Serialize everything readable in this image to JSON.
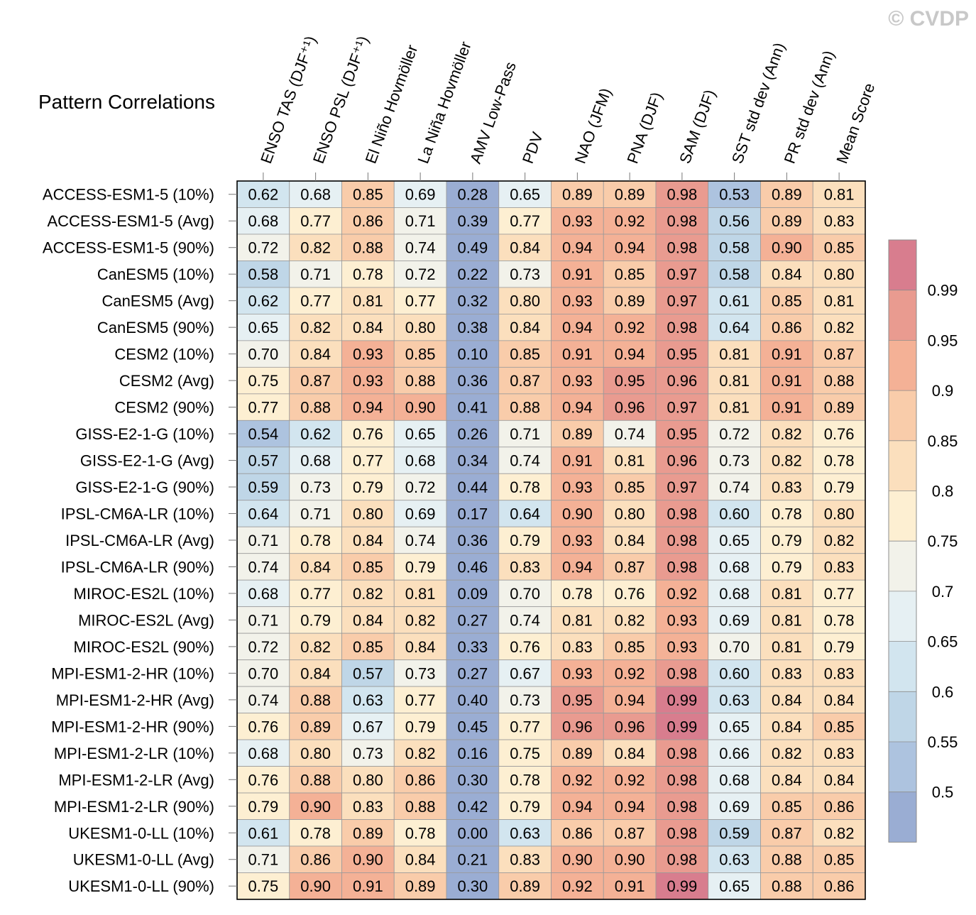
{
  "watermark": "© CVDP",
  "chart_data": {
    "type": "heatmap",
    "title": "Pattern Correlations",
    "columns": [
      "ENSO TAS (DJF⁺¹)",
      "ENSO PSL (DJF⁺¹)",
      "El Niño Hovmöller",
      "La Niña Hovmöller",
      "AMV Low-Pass",
      "PDV",
      "NAO (JFM)",
      "PNA (DJF)",
      "SAM (DJF)",
      "SST std dev (Ann)",
      "PR std dev (Ann)",
      "Mean Score"
    ],
    "rows": [
      "ACCESS-ESM1-5 (10%)",
      "ACCESS-ESM1-5 (Avg)",
      "ACCESS-ESM1-5 (90%)",
      "CanESM5 (10%)",
      "CanESM5 (Avg)",
      "CanESM5 (90%)",
      "CESM2 (10%)",
      "CESM2 (Avg)",
      "CESM2 (90%)",
      "GISS-E2-1-G (10%)",
      "GISS-E2-1-G (Avg)",
      "GISS-E2-1-G (90%)",
      "IPSL-CM6A-LR (10%)",
      "IPSL-CM6A-LR (Avg)",
      "IPSL-CM6A-LR (90%)",
      "MIROC-ES2L (10%)",
      "MIROC-ES2L (Avg)",
      "MIROC-ES2L (90%)",
      "MPI-ESM1-2-HR (10%)",
      "MPI-ESM1-2-HR (Avg)",
      "MPI-ESM1-2-HR (90%)",
      "MPI-ESM1-2-LR (10%)",
      "MPI-ESM1-2-LR (Avg)",
      "MPI-ESM1-2-LR (90%)",
      "UKESM1-0-LL (10%)",
      "UKESM1-0-LL (Avg)",
      "UKESM1-0-LL (90%)"
    ],
    "values": [
      [
        "0.62",
        "0.68",
        "0.85",
        "0.69",
        "0.28",
        "0.65",
        "0.89",
        "0.89",
        "0.98",
        "0.53",
        "0.89",
        "0.81"
      ],
      [
        "0.68",
        "0.77",
        "0.86",
        "0.71",
        "0.39",
        "0.77",
        "0.93",
        "0.92",
        "0.98",
        "0.56",
        "0.89",
        "0.83"
      ],
      [
        "0.72",
        "0.82",
        "0.88",
        "0.74",
        "0.49",
        "0.84",
        "0.94",
        "0.94",
        "0.98",
        "0.58",
        "0.90",
        "0.85"
      ],
      [
        "0.58",
        "0.71",
        "0.78",
        "0.72",
        "0.22",
        "0.73",
        "0.91",
        "0.85",
        "0.97",
        "0.58",
        "0.84",
        "0.80"
      ],
      [
        "0.62",
        "0.77",
        "0.81",
        "0.77",
        "0.32",
        "0.80",
        "0.93",
        "0.89",
        "0.97",
        "0.61",
        "0.85",
        "0.81"
      ],
      [
        "0.65",
        "0.82",
        "0.84",
        "0.80",
        "0.38",
        "0.84",
        "0.94",
        "0.92",
        "0.98",
        "0.64",
        "0.86",
        "0.82"
      ],
      [
        "0.70",
        "0.84",
        "0.93",
        "0.85",
        "0.10",
        "0.85",
        "0.91",
        "0.94",
        "0.95",
        "0.81",
        "0.91",
        "0.87"
      ],
      [
        "0.75",
        "0.87",
        "0.93",
        "0.88",
        "0.36",
        "0.87",
        "0.93",
        "0.95",
        "0.96",
        "0.81",
        "0.91",
        "0.88"
      ],
      [
        "0.77",
        "0.88",
        "0.94",
        "0.90",
        "0.41",
        "0.88",
        "0.94",
        "0.96",
        "0.97",
        "0.81",
        "0.91",
        "0.89"
      ],
      [
        "0.54",
        "0.62",
        "0.76",
        "0.65",
        "0.26",
        "0.71",
        "0.89",
        "0.74",
        "0.95",
        "0.72",
        "0.82",
        "0.76"
      ],
      [
        "0.57",
        "0.68",
        "0.77",
        "0.68",
        "0.34",
        "0.74",
        "0.91",
        "0.81",
        "0.96",
        "0.73",
        "0.82",
        "0.78"
      ],
      [
        "0.59",
        "0.73",
        "0.79",
        "0.72",
        "0.44",
        "0.78",
        "0.93",
        "0.85",
        "0.97",
        "0.74",
        "0.83",
        "0.79"
      ],
      [
        "0.64",
        "0.71",
        "0.80",
        "0.69",
        "0.17",
        "0.64",
        "0.90",
        "0.80",
        "0.98",
        "0.60",
        "0.78",
        "0.80"
      ],
      [
        "0.71",
        "0.78",
        "0.84",
        "0.74",
        "0.36",
        "0.79",
        "0.93",
        "0.84",
        "0.98",
        "0.65",
        "0.79",
        "0.82"
      ],
      [
        "0.74",
        "0.84",
        "0.85",
        "0.79",
        "0.46",
        "0.83",
        "0.94",
        "0.87",
        "0.98",
        "0.68",
        "0.79",
        "0.83"
      ],
      [
        "0.68",
        "0.77",
        "0.82",
        "0.81",
        "0.09",
        "0.70",
        "0.78",
        "0.76",
        "0.92",
        "0.68",
        "0.81",
        "0.77"
      ],
      [
        "0.71",
        "0.79",
        "0.84",
        "0.82",
        "0.27",
        "0.74",
        "0.81",
        "0.82",
        "0.93",
        "0.69",
        "0.81",
        "0.78"
      ],
      [
        "0.72",
        "0.82",
        "0.85",
        "0.84",
        "0.33",
        "0.76",
        "0.83",
        "0.85",
        "0.93",
        "0.70",
        "0.81",
        "0.79"
      ],
      [
        "0.70",
        "0.84",
        "0.57",
        "0.73",
        "0.27",
        "0.67",
        "0.93",
        "0.92",
        "0.98",
        "0.60",
        "0.83",
        "0.83"
      ],
      [
        "0.74",
        "0.88",
        "0.63",
        "0.77",
        "0.40",
        "0.73",
        "0.95",
        "0.94",
        "0.99",
        "0.63",
        "0.84",
        "0.84"
      ],
      [
        "0.76",
        "0.89",
        "0.67",
        "0.79",
        "0.45",
        "0.77",
        "0.96",
        "0.96",
        "0.99",
        "0.65",
        "0.84",
        "0.85"
      ],
      [
        "0.68",
        "0.80",
        "0.73",
        "0.82",
        "0.16",
        "0.75",
        "0.89",
        "0.84",
        "0.98",
        "0.66",
        "0.82",
        "0.83"
      ],
      [
        "0.76",
        "0.88",
        "0.80",
        "0.86",
        "0.30",
        "0.78",
        "0.92",
        "0.92",
        "0.98",
        "0.68",
        "0.84",
        "0.84"
      ],
      [
        "0.79",
        "0.90",
        "0.83",
        "0.88",
        "0.42",
        "0.79",
        "0.94",
        "0.94",
        "0.98",
        "0.69",
        "0.85",
        "0.86"
      ],
      [
        "0.61",
        "0.78",
        "0.89",
        "0.78",
        "0.00",
        "0.63",
        "0.86",
        "0.87",
        "0.98",
        "0.59",
        "0.87",
        "0.82"
      ],
      [
        "0.71",
        "0.86",
        "0.90",
        "0.84",
        "0.21",
        "0.83",
        "0.90",
        "0.90",
        "0.98",
        "0.63",
        "0.88",
        "0.85"
      ],
      [
        "0.75",
        "0.90",
        "0.91",
        "0.89",
        "0.30",
        "0.89",
        "0.92",
        "0.91",
        "0.99",
        "0.65",
        "0.88",
        "0.86"
      ]
    ],
    "colorbar": {
      "levels": [
        0.5,
        0.55,
        0.6,
        0.65,
        0.7,
        0.75,
        0.8,
        0.85,
        0.9,
        0.95,
        0.99
      ],
      "labels": [
        "0.5",
        "0.55",
        "0.6",
        "0.65",
        "0.7",
        "0.75",
        "0.8",
        "0.85",
        "0.9",
        "0.95",
        "0.99"
      ],
      "colors": [
        "#9aadd3",
        "#adc3df",
        "#bfd6e7",
        "#d2e5ef",
        "#e6f0f3",
        "#f2f2ea",
        "#fdefd2",
        "#fbdfbd",
        "#f9ccaa",
        "#f4b196",
        "#e99b90",
        "#d87d8e"
      ]
    }
  }
}
